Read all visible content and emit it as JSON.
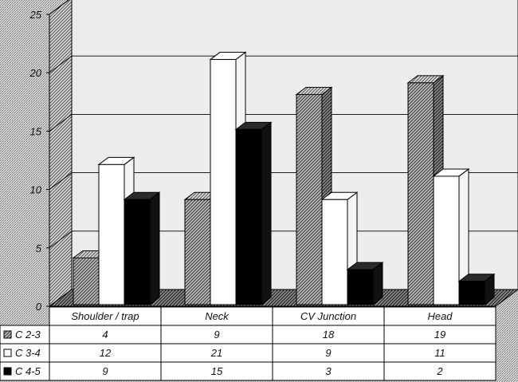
{
  "chart_data": {
    "type": "bar",
    "title": "",
    "xlabel": "",
    "ylabel": "",
    "ylim": [
      0,
      25
    ],
    "yticks": [
      0,
      5,
      10,
      15,
      20,
      25
    ],
    "categories": [
      "Shoulder / trap",
      "Neck",
      "CV Junction",
      "Head"
    ],
    "series": [
      {
        "name": "C 2-3",
        "values": [
          4,
          9,
          18,
          19
        ],
        "fill": "hatch"
      },
      {
        "name": "C 3-4",
        "values": [
          12,
          21,
          9,
          11
        ],
        "fill": "white"
      },
      {
        "name": "C 4-5",
        "values": [
          9,
          15,
          3,
          2
        ],
        "fill": "black"
      }
    ],
    "grid": true,
    "legend": "data-table-left",
    "style": "3d-bars-with-data-table"
  },
  "colors": {
    "hatch_dark": "#555555",
    "hatch_light": "#f2f2f2",
    "bar_white": "#ffffff",
    "bar_black": "#000000",
    "outline": "#000000"
  }
}
